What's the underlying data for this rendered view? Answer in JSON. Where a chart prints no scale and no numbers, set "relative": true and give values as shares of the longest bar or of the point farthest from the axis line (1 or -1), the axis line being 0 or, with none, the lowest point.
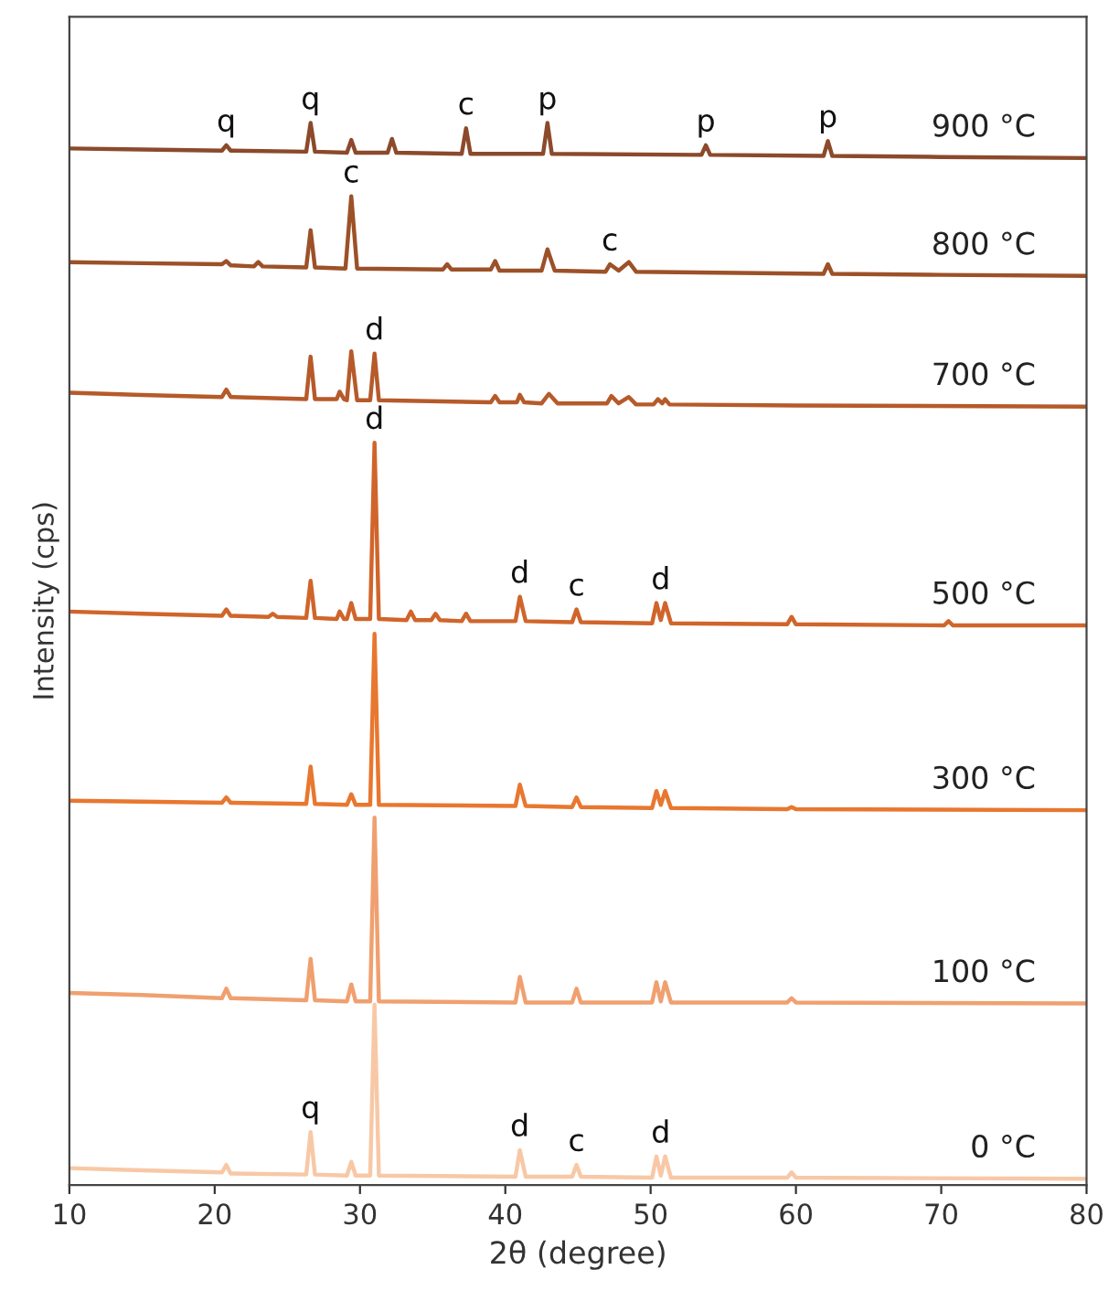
{
  "chart_data": {
    "type": "line",
    "relative": true,
    "xlabel": "2θ (degree)",
    "ylabel": "Intensity (cps)",
    "xlim": [
      10,
      80
    ],
    "xticks": [
      10,
      20,
      30,
      40,
      50,
      60,
      70,
      80
    ],
    "tick_labels": "x",
    "grid": false,
    "legend": false,
    "marker": "none",
    "line_style": "solid",
    "series": [
      {
        "name": "900 °C",
        "color": "#8b4a2b",
        "x": [
          10,
          15,
          20.5,
          20.8,
          21.1,
          26.3,
          26.6,
          26.9,
          29.1,
          29.4,
          29.7,
          31.9,
          32.2,
          32.5,
          37.0,
          37.3,
          37.6,
          42.6,
          42.9,
          43.2,
          53.5,
          53.8,
          54.1,
          61.9,
          62.2,
          62.5,
          70,
          80
        ],
        "values": [
          0.976,
          0.975,
          0.974,
          0.979,
          0.974,
          0.973,
          1.0,
          0.973,
          0.972,
          0.984,
          0.972,
          0.972,
          0.985,
          0.972,
          0.971,
          0.995,
          0.971,
          0.971,
          1.0,
          0.971,
          0.97,
          0.979,
          0.97,
          0.969,
          0.983,
          0.969,
          0.968,
          0.967
        ]
      },
      {
        "name": "800 °C",
        "color": "#9c5128",
        "x": [
          10,
          15,
          20.5,
          20.8,
          21.1,
          22.7,
          23.0,
          23.3,
          26.3,
          26.6,
          26.9,
          29.0,
          29.4,
          29.8,
          35.7,
          36.0,
          36.3,
          39.0,
          39.3,
          39.6,
          42.5,
          42.9,
          43.4,
          46.9,
          47.2,
          47.8,
          48.5,
          49.0,
          61.9,
          62.2,
          62.5,
          70,
          80
        ],
        "values": [
          0.869,
          0.868,
          0.867,
          0.87,
          0.866,
          0.865,
          0.869,
          0.865,
          0.864,
          0.899,
          0.864,
          0.863,
          0.931,
          0.863,
          0.862,
          0.867,
          0.862,
          0.862,
          0.87,
          0.861,
          0.861,
          0.881,
          0.861,
          0.86,
          0.867,
          0.861,
          0.869,
          0.86,
          0.858,
          0.867,
          0.858,
          0.857,
          0.856
        ]
      },
      {
        "name": "700 °C",
        "color": "#b65a2a",
        "x": [
          10,
          15,
          20.5,
          20.8,
          21.1,
          26.3,
          26.6,
          26.9,
          28.4,
          28.6,
          28.9,
          29.1,
          29.4,
          29.8,
          30.7,
          31.0,
          31.3,
          39.0,
          39.3,
          39.6,
          40.8,
          41.0,
          41.3,
          42.5,
          43.0,
          43.6,
          47.0,
          47.3,
          47.8,
          48.5,
          49.0,
          50.2,
          50.5,
          50.8,
          51.0,
          51.3,
          60,
          80
        ],
        "values": [
          0.746,
          0.744,
          0.742,
          0.749,
          0.742,
          0.74,
          0.78,
          0.74,
          0.74,
          0.747,
          0.74,
          0.739,
          0.785,
          0.739,
          0.739,
          0.783,
          0.739,
          0.737,
          0.743,
          0.737,
          0.737,
          0.744,
          0.737,
          0.736,
          0.745,
          0.736,
          0.736,
          0.743,
          0.736,
          0.742,
          0.735,
          0.735,
          0.74,
          0.736,
          0.74,
          0.735,
          0.734,
          0.733
        ]
      },
      {
        "name": "500 °C",
        "color": "#d0652b",
        "x": [
          10,
          15,
          20.5,
          20.8,
          21.1,
          23.7,
          24.0,
          24.3,
          26.3,
          26.6,
          26.9,
          28.4,
          28.6,
          28.9,
          29.1,
          29.4,
          29.7,
          30.7,
          31.0,
          31.3,
          33.2,
          33.5,
          33.8,
          34.9,
          35.2,
          35.5,
          37.0,
          37.3,
          37.6,
          40.7,
          41.0,
          41.4,
          44.6,
          44.9,
          45.2,
          50.1,
          50.4,
          50.7,
          51.0,
          51.4,
          59.4,
          59.7,
          60.0,
          70.2,
          70.5,
          70.8,
          80
        ],
        "values": [
          0.54,
          0.538,
          0.536,
          0.542,
          0.536,
          0.535,
          0.538,
          0.535,
          0.534,
          0.569,
          0.534,
          0.533,
          0.54,
          0.533,
          0.533,
          0.548,
          0.533,
          0.533,
          0.699,
          0.533,
          0.532,
          0.54,
          0.532,
          0.532,
          0.538,
          0.532,
          0.531,
          0.538,
          0.531,
          0.531,
          0.554,
          0.531,
          0.53,
          0.542,
          0.53,
          0.529,
          0.548,
          0.532,
          0.548,
          0.529,
          0.528,
          0.535,
          0.528,
          0.527,
          0.531,
          0.527,
          0.527
        ]
      },
      {
        "name": "300 °C",
        "color": "#e8772f",
        "x": [
          10,
          15,
          20.5,
          20.8,
          21.1,
          26.3,
          26.6,
          26.9,
          29.1,
          29.4,
          29.7,
          30.7,
          31.0,
          31.3,
          40.7,
          41.0,
          41.4,
          44.6,
          44.9,
          45.2,
          50.1,
          50.4,
          50.7,
          51.0,
          51.4,
          59.4,
          59.7,
          60.0,
          80
        ],
        "values": [
          0.362,
          0.361,
          0.36,
          0.365,
          0.36,
          0.359,
          0.394,
          0.359,
          0.358,
          0.368,
          0.358,
          0.358,
          0.519,
          0.358,
          0.357,
          0.377,
          0.357,
          0.356,
          0.365,
          0.356,
          0.355,
          0.371,
          0.358,
          0.371,
          0.355,
          0.354,
          0.356,
          0.354,
          0.353
        ]
      },
      {
        "name": "100 °C",
        "color": "#f0a070",
        "x": [
          10,
          15,
          20.5,
          20.8,
          21.1,
          26.3,
          26.6,
          26.9,
          29.1,
          29.4,
          29.7,
          30.7,
          31.0,
          31.3,
          40.7,
          41.0,
          41.4,
          44.6,
          44.9,
          45.2,
          50.1,
          50.4,
          50.7,
          51.0,
          51.4,
          59.4,
          59.7,
          60.0,
          80
        ],
        "values": [
          0.181,
          0.179,
          0.176,
          0.185,
          0.176,
          0.174,
          0.213,
          0.174,
          0.173,
          0.189,
          0.173,
          0.173,
          0.346,
          0.173,
          0.172,
          0.196,
          0.172,
          0.172,
          0.185,
          0.172,
          0.172,
          0.191,
          0.173,
          0.191,
          0.172,
          0.172,
          0.176,
          0.172,
          0.171
        ]
      },
      {
        "name": "0 °C",
        "color": "#f8c8a6",
        "x": [
          10,
          15,
          20.5,
          20.8,
          21.1,
          26.3,
          26.6,
          26.9,
          29.1,
          29.4,
          29.7,
          30.7,
          31.0,
          31.3,
          40.7,
          41.0,
          41.4,
          44.6,
          44.9,
          45.2,
          50.1,
          50.4,
          50.7,
          51.0,
          51.4,
          59.4,
          59.7,
          60.0,
          80
        ],
        "values": [
          0.016,
          0.014,
          0.012,
          0.019,
          0.011,
          0.01,
          0.05,
          0.01,
          0.009,
          0.022,
          0.009,
          0.009,
          0.17,
          0.009,
          0.008,
          0.033,
          0.008,
          0.008,
          0.019,
          0.008,
          0.007,
          0.027,
          0.009,
          0.027,
          0.007,
          0.007,
          0.012,
          0.007,
          0.006
        ]
      }
    ],
    "annotations": [
      {
        "text": "q",
        "x": 20.8,
        "y": 0.979
      },
      {
        "text": "q",
        "x": 26.6,
        "y": 1.0
      },
      {
        "text": "c",
        "x": 37.3,
        "y": 0.995
      },
      {
        "text": "p",
        "x": 42.9,
        "y": 1.0
      },
      {
        "text": "p",
        "x": 53.8,
        "y": 0.979
      },
      {
        "text": "p",
        "x": 62.2,
        "y": 0.983
      },
      {
        "text": "c",
        "x": 29.4,
        "y": 0.931
      },
      {
        "text": "c",
        "x": 47.2,
        "y": 0.867
      },
      {
        "text": "d",
        "x": 31.0,
        "y": 0.783
      },
      {
        "text": "d",
        "x": 31.0,
        "y": 0.699
      },
      {
        "text": "d",
        "x": 41.0,
        "y": 0.554
      },
      {
        "text": "c",
        "x": 44.9,
        "y": 0.542
      },
      {
        "text": "d",
        "x": 50.7,
        "y": 0.548
      },
      {
        "text": "q",
        "x": 26.6,
        "y": 0.05
      },
      {
        "text": "d",
        "x": 41.0,
        "y": 0.033
      },
      {
        "text": "c",
        "x": 44.9,
        "y": 0.019
      },
      {
        "text": "d",
        "x": 50.7,
        "y": 0.027
      }
    ]
  }
}
